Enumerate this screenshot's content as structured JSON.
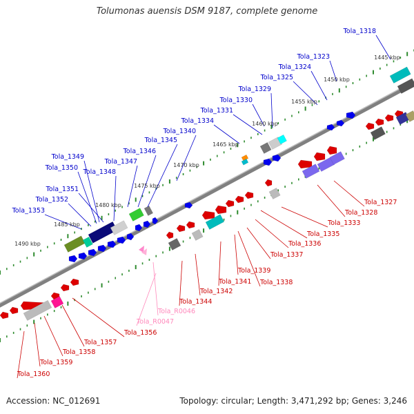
{
  "title": "Tolumonas auensis DSM 9187, complete genome",
  "footer": {
    "accession": "Accession: NC_012691",
    "summary": "Topology: circular; Length: 3,471,292 bp; Genes: 3,246"
  },
  "colors": {
    "backbone": "#808080",
    "tick": "#2e8b2e",
    "label_forward": "#0000cc",
    "label_reverse": "#cc0000",
    "label_rna": "#ff88bb"
  },
  "scale_labels": [
    "1445 kbp",
    "1450 kbp",
    "1455 kbp",
    "1460 kbp",
    "1465 kbp",
    "1470 kbp",
    "1475 kbp",
    "1480 kbp",
    "1485 kbp",
    "1490 kbp"
  ],
  "forward_labels": [
    "Tola_1318",
    "Tola_1323",
    "Tola_1324",
    "Tola_1325",
    "Tola_1329",
    "Tola_1330",
    "Tola_1331",
    "Tola_1334",
    "Tola_1340",
    "Tola_1345",
    "Tola_1346",
    "Tola_1347",
    "Tola_1349",
    "Tola_1350",
    "Tola_1348",
    "Tola_1351",
    "Tola_1352",
    "Tola_1353"
  ],
  "reverse_labels": [
    "Tola_1327",
    "Tola_1328",
    "Tola_1333",
    "Tola_1335",
    "Tola_1336",
    "Tola_1337",
    "Tola_1339",
    "Tola_1338",
    "Tola_1341",
    "Tola_1342",
    "Tola_1344",
    "Tola_1356",
    "Tola_1357",
    "Tola_1358",
    "Tola_1359",
    "Tola_1360"
  ],
  "rna_labels": [
    "Tola_R0046",
    "Tola_R0047"
  ]
}
